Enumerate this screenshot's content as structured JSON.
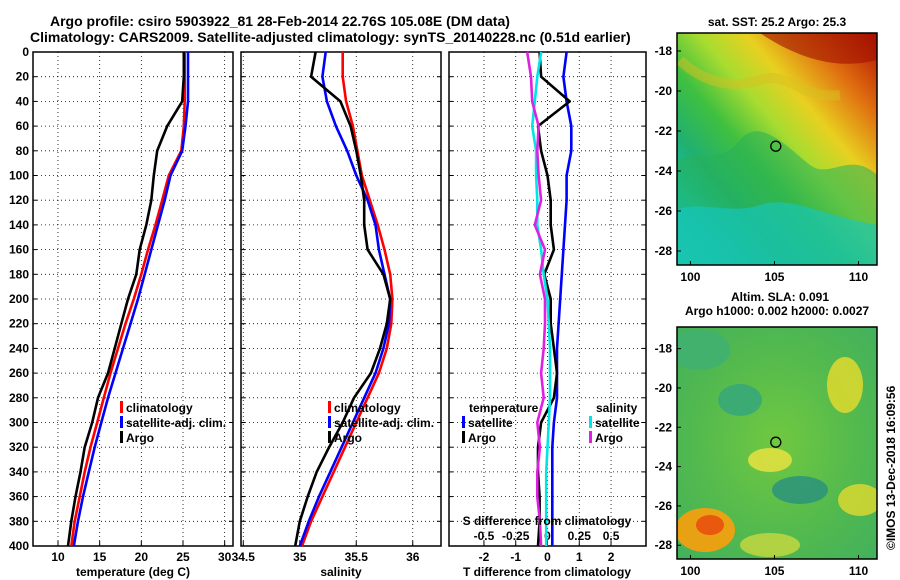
{
  "header": {
    "line1": "Argo profile: csiro 5903922_81 28-Feb-2014 22.76S 105.08E (DM data)",
    "line2": "Climatology: CARS2009. Satellite-adjusted climatology: synTS_20140228.nc (0.51d earlier)"
  },
  "depth_ticks": [
    "0",
    "20",
    "40",
    "60",
    "80",
    "100",
    "120",
    "140",
    "160",
    "180",
    "200",
    "220",
    "240",
    "260",
    "280",
    "300",
    "320",
    "340",
    "360",
    "380",
    "400"
  ],
  "colors": {
    "climatology": "#ff0000",
    "satellite": "#0000ff",
    "argo": "#000000",
    "sal_sat": "#00e5e5",
    "sal_argo": "#e020e0"
  },
  "chart_data": [
    {
      "type": "line",
      "title": "",
      "xlabel": "temperature (deg C)",
      "ylabel": "",
      "xlim": [
        7,
        31
      ],
      "ylim": [
        400,
        0
      ],
      "xticks": [
        "10",
        "15",
        "20",
        "25",
        "30"
      ],
      "legend": [
        "climatology",
        "satellite-adj. clim.",
        "Argo"
      ],
      "series": [
        {
          "name": "climatology",
          "color": "#ff0000",
          "x": [
            25.2,
            25.2,
            25.2,
            25.1,
            24.8,
            23.3,
            22.5,
            21.7,
            20.8,
            20.0,
            19.1,
            18.1,
            17.2,
            16.3,
            15.5,
            14.7,
            13.9,
            13.2,
            12.6,
            12.0,
            11.6
          ],
          "y": [
            0,
            20,
            40,
            60,
            80,
            100,
            120,
            140,
            160,
            180,
            200,
            220,
            240,
            260,
            280,
            300,
            320,
            340,
            360,
            380,
            400
          ]
        },
        {
          "name": "satellite-adj. clim.",
          "color": "#0000ff",
          "x": [
            25.6,
            25.6,
            25.6,
            25.3,
            24.9,
            23.5,
            22.8,
            22.0,
            21.2,
            20.4,
            19.6,
            18.7,
            17.8,
            16.9,
            16.0,
            15.2,
            14.4,
            13.7,
            13.0,
            12.4,
            11.9
          ],
          "y": [
            0,
            20,
            40,
            60,
            80,
            100,
            120,
            140,
            160,
            180,
            200,
            220,
            240,
            260,
            280,
            300,
            320,
            340,
            360,
            380,
            400
          ]
        },
        {
          "name": "Argo",
          "color": "#000000",
          "x": [
            25.1,
            25.1,
            24.9,
            23.1,
            21.9,
            21.5,
            21.2,
            20.6,
            19.8,
            19.4,
            18.4,
            17.6,
            16.8,
            16.0,
            14.8,
            14.1,
            13.2,
            12.7,
            12.1,
            11.6,
            11.2
          ],
          "y": [
            0,
            20,
            40,
            60,
            80,
            100,
            120,
            140,
            160,
            180,
            200,
            220,
            240,
            260,
            280,
            300,
            320,
            340,
            360,
            380,
            400
          ]
        }
      ]
    },
    {
      "type": "line",
      "title": "",
      "xlabel": "salinity",
      "ylabel": "",
      "xlim": [
        34.48,
        36.25
      ],
      "ylim": [
        400,
        0
      ],
      "xticks": [
        "34.5",
        "35",
        "35.5",
        "36"
      ],
      "legend": [
        "climatology",
        "satellite-adj. clim.",
        "Argo"
      ],
      "series": [
        {
          "name": "climatology",
          "color": "#ff0000",
          "x": [
            35.38,
            35.38,
            35.41,
            35.47,
            35.51,
            35.55,
            35.62,
            35.69,
            35.75,
            35.8,
            35.82,
            35.81,
            35.77,
            35.7,
            35.6,
            35.5,
            35.4,
            35.3,
            35.2,
            35.1,
            35.02
          ],
          "y": [
            0,
            20,
            40,
            60,
            80,
            100,
            120,
            140,
            160,
            180,
            200,
            220,
            240,
            260,
            280,
            300,
            320,
            340,
            360,
            380,
            400
          ]
        },
        {
          "name": "satellite-adj. clim.",
          "color": "#0000ff",
          "x": [
            35.23,
            35.2,
            35.24,
            35.32,
            35.42,
            35.5,
            35.6,
            35.67,
            35.7,
            35.75,
            35.8,
            35.79,
            35.74,
            35.67,
            35.57,
            35.47,
            35.37,
            35.27,
            35.17,
            35.08,
            35.0
          ],
          "y": [
            0,
            20,
            40,
            60,
            80,
            100,
            120,
            140,
            160,
            180,
            200,
            220,
            240,
            260,
            280,
            300,
            320,
            340,
            360,
            380,
            400
          ]
        },
        {
          "name": "Argo",
          "color": "#000000",
          "x": [
            35.14,
            35.1,
            35.36,
            35.45,
            35.5,
            35.54,
            35.57,
            35.57,
            35.6,
            35.74,
            35.8,
            35.77,
            35.71,
            35.63,
            35.48,
            35.38,
            35.26,
            35.15,
            35.07,
            35.0,
            34.96
          ],
          "y": [
            0,
            20,
            40,
            60,
            80,
            100,
            120,
            140,
            160,
            180,
            200,
            220,
            240,
            260,
            280,
            300,
            320,
            340,
            360,
            380,
            400
          ]
        }
      ]
    },
    {
      "type": "line",
      "title": "",
      "xlabel": "T difference from climatology",
      "top_xlabel": "S difference from climatology",
      "ylabel": "",
      "xlim": [
        -3.1,
        3.1
      ],
      "top_xlim": [
        -0.775,
        0.775
      ],
      "ylim": [
        400,
        0
      ],
      "xticks": [
        "-2",
        "-1",
        "0",
        "1",
        "2"
      ],
      "top_xticks": [
        "-0.5",
        "-0.25",
        "0",
        "0.25",
        "0.5"
      ],
      "legend_temperature_title": "temperature",
      "legend_salinity_title": "salinity",
      "legend": [
        "satellite",
        "Argo"
      ],
      "series": [
        {
          "name": "temperature satellite",
          "color": "#0000ff",
          "x": [
            0.6,
            0.5,
            0.6,
            0.75,
            0.75,
            0.6,
            0.6,
            0.55,
            0.5,
            0.45,
            0.4,
            0.35,
            0.3,
            0.3,
            0.3,
            0.2,
            0.15,
            0.15,
            0.15,
            0.15,
            0.15
          ],
          "y": [
            0,
            20,
            40,
            60,
            80,
            100,
            120,
            140,
            160,
            180,
            200,
            220,
            240,
            260,
            280,
            300,
            320,
            340,
            360,
            380,
            400
          ]
        },
        {
          "name": "temperature Argo",
          "color": "#000000",
          "x": [
            -0.25,
            -0.2,
            0.7,
            -0.3,
            -0.2,
            0.0,
            0.1,
            0.1,
            0.2,
            -0.1,
            0.1,
            0.1,
            0.2,
            0.3,
            0.2,
            -0.2,
            -0.3,
            -0.3,
            -0.25,
            -0.25,
            -0.3
          ],
          "y": [
            0,
            20,
            40,
            60,
            80,
            100,
            120,
            140,
            160,
            180,
            200,
            220,
            240,
            260,
            280,
            300,
            320,
            340,
            360,
            380,
            400
          ]
        },
        {
          "name": "salinity satellite",
          "color": "#00e5e5",
          "x": [
            -0.05,
            -0.08,
            -0.1,
            -0.12,
            -0.09,
            -0.09,
            -0.08,
            -0.08,
            -0.05,
            -0.03,
            0.0,
            0.01,
            0.02,
            0.02,
            0.02,
            0.01,
            0.0,
            -0.01,
            -0.01,
            -0.01,
            -0.01
          ],
          "y": [
            0,
            20,
            40,
            60,
            80,
            100,
            120,
            140,
            160,
            180,
            200,
            220,
            240,
            260,
            280,
            300,
            320,
            340,
            360,
            380,
            400
          ]
        },
        {
          "name": "salinity Argo",
          "color": "#e020e0",
          "x": [
            -0.16,
            -0.13,
            -0.12,
            -0.07,
            -0.08,
            -0.07,
            -0.05,
            -0.1,
            -0.02,
            -0.06,
            -0.02,
            -0.02,
            -0.03,
            -0.05,
            -0.03,
            -0.08,
            -0.06,
            -0.08,
            -0.08,
            -0.06,
            -0.05
          ],
          "y": [
            0,
            20,
            40,
            60,
            80,
            100,
            120,
            140,
            160,
            180,
            200,
            220,
            240,
            260,
            280,
            300,
            320,
            340,
            360,
            380,
            400
          ]
        }
      ]
    },
    {
      "type": "heatmap",
      "title": "sat. SST: 25.2 Argo: 25.3",
      "xlabel": "",
      "ylabel": "",
      "xlim": [
        99.2,
        111.1
      ],
      "ylim": [
        -28.7,
        -17.1
      ],
      "xticks": [
        "100",
        "105",
        "110"
      ],
      "yticks": [
        "-18",
        "-20",
        "-22",
        "-24",
        "-26",
        "-28"
      ],
      "marker": {
        "lon": 105.08,
        "lat": -22.76
      }
    },
    {
      "type": "heatmap",
      "title": "Altim. SLA: 0.091",
      "subtitle": "Argo h1000: 0.002 h2000: 0.0027",
      "xlabel": "",
      "ylabel": "",
      "xlim": [
        99.2,
        111.1
      ],
      "ylim": [
        -28.7,
        -16.9
      ],
      "xticks": [
        "100",
        "105",
        "110"
      ],
      "yticks": [
        "-18",
        "-20",
        "-22",
        "-24",
        "-26",
        "-28"
      ],
      "marker": {
        "lon": 105.08,
        "lat": -22.76
      }
    }
  ],
  "sidebar": {
    "stamp": "©IMOS 13-Dec-2018 16:09:56"
  }
}
